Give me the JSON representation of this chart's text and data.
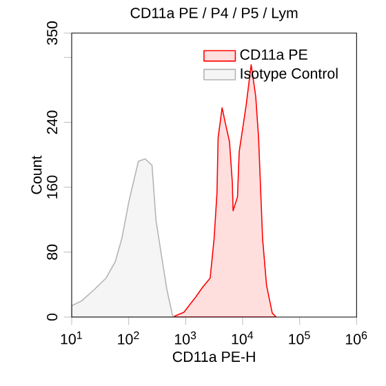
{
  "chart_data": {
    "type": "area",
    "title": "CD11a PE / P4 / P5 / Lym",
    "xlabel": "CD11a PE-H",
    "ylabel": "Count",
    "log": "x",
    "xlim": [
      10,
      1000000
    ],
    "xticks": [
      {
        "value": 10,
        "label": "10$^{1}$"
      },
      {
        "value": 100,
        "label": "10$^{2}$"
      },
      {
        "value": 1000,
        "label": "10$^{3}$"
      },
      {
        "value": 10000,
        "label": "10$^{4}$"
      },
      {
        "value": 100000,
        "label": "10$^{5}$"
      },
      {
        "value": 1000000,
        "label": "10$^{6}$"
      }
    ],
    "ylim": [
      0,
      350
    ],
    "yticks": [
      0,
      80,
      160,
      240,
      {
        "value": 320,
        "label": null
      },
      350
    ],
    "legend": "top right",
    "grid": false,
    "series": [
      {
        "name": "CD11a PE",
        "color": "#ff0000",
        "x": [
          589,
          933,
          1514,
          1995,
          2692,
          3162,
          3548,
          3715,
          4365,
          5012,
          5888,
          6607,
          6800,
          8128,
          8710,
          11482,
          14125,
          16982,
          19055,
          22387,
          26303,
          33113,
          38905
        ],
        "values": [
          0,
          6,
          25,
          37,
          48,
          97,
          153,
          221,
          258,
          238,
          216,
          165,
          131,
          148,
          204,
          260,
          311,
          272,
          221,
          97,
          39,
          5,
          0
        ]
      },
      {
        "name": "Isotype Control",
        "color": "#b4b4b4",
        "x": [
          10,
          15,
          25,
          40,
          58,
          76,
          100,
          148,
          195,
          257,
          302,
          380,
          468,
          589,
          631
        ],
        "values": [
          14,
          20,
          34,
          48,
          68,
          97,
          141,
          192,
          195,
          187,
          119,
          74,
          34,
          2,
          0
        ]
      }
    ]
  }
}
